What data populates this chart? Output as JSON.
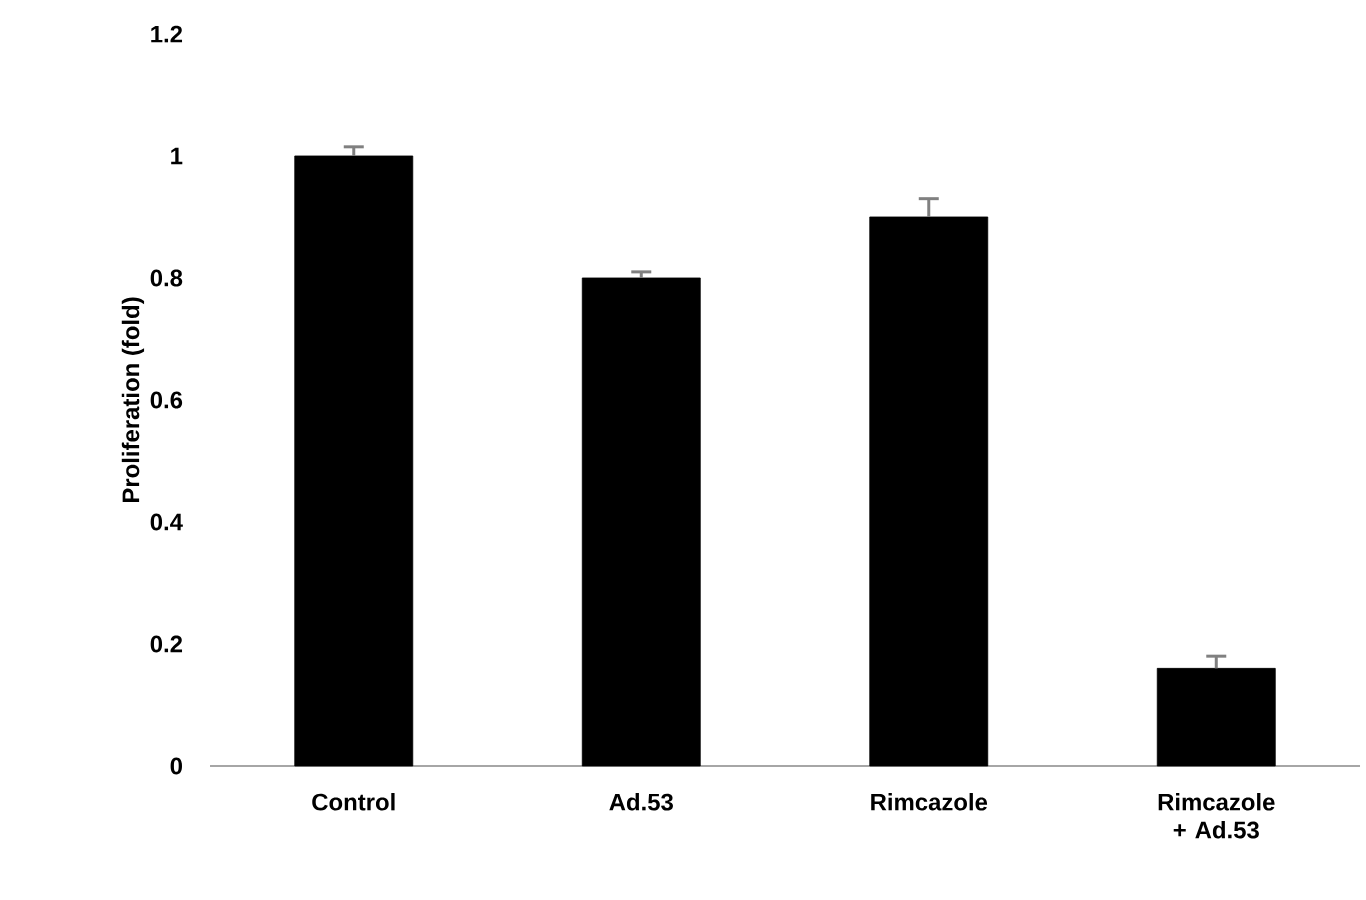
{
  "chart_data": {
    "type": "bar",
    "ylabel": "Proliferation (fold)",
    "categories": [
      "Control",
      "Ad.53",
      "Rimcazole",
      "Rimcazole + Ad.53"
    ],
    "values": [
      1.0,
      0.8,
      0.9,
      0.16
    ],
    "color": "#000000",
    "errors": [
      [
        1.0,
        1.015
      ],
      [
        0.8,
        0.81
      ],
      [
        0.9,
        0.93
      ],
      [
        0.16,
        0.18
      ]
    ],
    "ylim": [
      0,
      1.2
    ],
    "yticks": [
      0,
      0.2,
      0.4,
      0.6,
      0.8,
      1,
      1.2
    ],
    "grid": false
  }
}
